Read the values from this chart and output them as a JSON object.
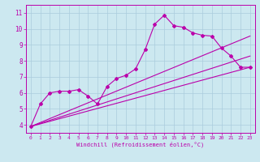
{
  "xlabel": "Windchill (Refroidissement éolien,°C)",
  "bg_color": "#cce8f0",
  "grid_color": "#aaccdd",
  "line_color": "#bb00aa",
  "xlim": [
    -0.5,
    23.5
  ],
  "ylim": [
    3.5,
    11.5
  ],
  "xticks": [
    0,
    1,
    2,
    3,
    4,
    5,
    6,
    7,
    8,
    9,
    10,
    11,
    12,
    13,
    14,
    15,
    16,
    17,
    18,
    19,
    20,
    21,
    22,
    23
  ],
  "yticks": [
    4,
    5,
    6,
    7,
    8,
    9,
    10,
    11
  ],
  "line1_x": [
    0,
    1,
    2,
    3,
    4,
    5,
    6,
    7,
    8,
    9,
    10,
    11,
    12,
    13,
    14,
    15,
    16,
    17,
    18,
    19,
    20,
    21,
    22,
    23
  ],
  "line1_y": [
    3.9,
    5.3,
    6.0,
    6.1,
    6.1,
    6.2,
    5.8,
    5.3,
    6.4,
    6.9,
    7.1,
    7.5,
    8.7,
    10.3,
    10.85,
    10.2,
    10.1,
    9.75,
    9.6,
    9.55,
    8.8,
    8.3,
    7.6,
    7.6
  ],
  "line2_x": [
    0,
    23
  ],
  "line2_y": [
    3.9,
    7.6
  ],
  "line3_x": [
    0,
    23
  ],
  "line3_y": [
    3.9,
    9.55
  ],
  "line4_x": [
    0,
    23
  ],
  "line4_y": [
    3.9,
    8.3
  ]
}
